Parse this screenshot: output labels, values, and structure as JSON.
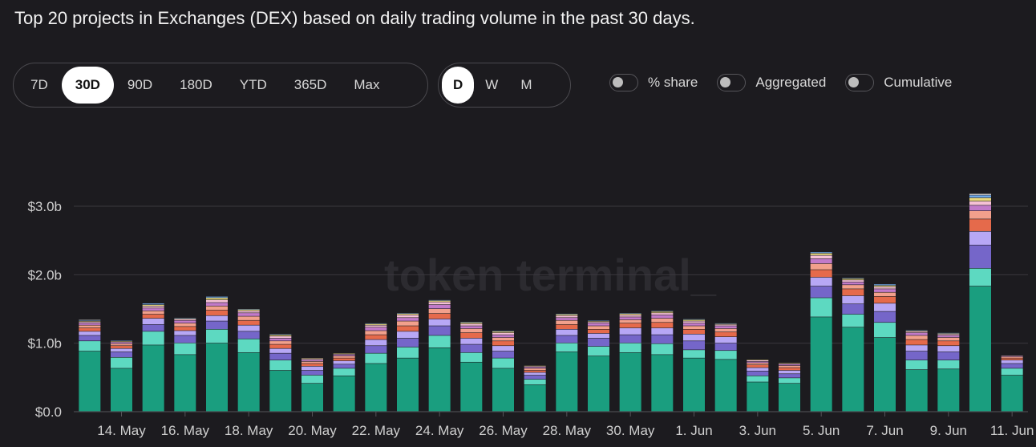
{
  "title": "Top 20 projects in Exchanges (DEX) based on daily trading volume in the past 30 days.",
  "range_options": [
    {
      "label": "7D",
      "active": false
    },
    {
      "label": "30D",
      "active": true
    },
    {
      "label": "90D",
      "active": false
    },
    {
      "label": "180D",
      "active": false
    },
    {
      "label": "YTD",
      "active": false
    },
    {
      "label": "365D",
      "active": false
    },
    {
      "label": "Max",
      "active": false
    }
  ],
  "granularity_options": [
    {
      "label": "D",
      "active": true
    },
    {
      "label": "W",
      "active": false
    },
    {
      "label": "M",
      "active": false
    }
  ],
  "toggles": [
    {
      "label": "% share",
      "on": false
    },
    {
      "label": "Aggregated",
      "on": false
    },
    {
      "label": "Cumulative",
      "on": false
    }
  ],
  "watermark": "token terminal_",
  "colors": {
    "background": "#1c1b1f",
    "grid": "#3a393e",
    "segment_palette": [
      "#1a9e7f",
      "#5dd9c1",
      "#7566c9",
      "#b7a7f5",
      "#e56a4b",
      "#f2a08c",
      "#c17ac9",
      "#f5c0d5",
      "#e8d77c",
      "#6ea8e8",
      "#f0f0f0",
      "#8fd18a"
    ]
  },
  "chart_data": {
    "type": "bar",
    "stacked": true,
    "y_ticks": [
      "$0.0",
      "$1.0b",
      "$2.0b",
      "$3.0b"
    ],
    "ylim": [
      0,
      3.0
    ],
    "x_tick_labels": [
      "14. May",
      "16. May",
      "18. May",
      "20. May",
      "22. May",
      "24. May",
      "26. May",
      "28. May",
      "30. May",
      "1. Jun",
      "3. Jun",
      "5. Jun",
      "7. Jun",
      "9. Jun",
      "11. Jun"
    ],
    "bars": [
      {
        "date": "13. May",
        "segments": [
          0.88,
          0.15,
          0.08,
          0.06,
          0.05,
          0.04,
          0.03,
          0.02,
          0.01,
          0.01,
          0.01
        ]
      },
      {
        "date": "14. May",
        "segments": [
          0.63,
          0.16,
          0.08,
          0.05,
          0.04,
          0.03,
          0.02,
          0.01,
          0.01,
          0.01
        ]
      },
      {
        "date": "15. May",
        "segments": [
          0.97,
          0.2,
          0.1,
          0.09,
          0.06,
          0.05,
          0.04,
          0.03,
          0.02,
          0.02
        ]
      },
      {
        "date": "16. May",
        "segments": [
          0.83,
          0.17,
          0.11,
          0.07,
          0.06,
          0.05,
          0.04,
          0.02,
          0.01,
          0.01
        ]
      },
      {
        "date": "17. May",
        "segments": [
          1.0,
          0.2,
          0.12,
          0.08,
          0.08,
          0.06,
          0.05,
          0.04,
          0.03,
          0.02
        ]
      },
      {
        "date": "18. May",
        "segments": [
          0.86,
          0.2,
          0.11,
          0.09,
          0.07,
          0.06,
          0.05,
          0.03,
          0.02,
          0.01
        ]
      },
      {
        "date": "19. May",
        "segments": [
          0.6,
          0.15,
          0.1,
          0.07,
          0.06,
          0.05,
          0.04,
          0.03,
          0.02,
          0.01
        ]
      },
      {
        "date": "20. May",
        "segments": [
          0.41,
          0.12,
          0.07,
          0.06,
          0.04,
          0.03,
          0.02,
          0.02,
          0.01
        ]
      },
      {
        "date": "21. May",
        "segments": [
          0.52,
          0.11,
          0.06,
          0.05,
          0.04,
          0.03,
          0.02,
          0.01,
          0.01
        ]
      },
      {
        "date": "22. May",
        "segments": [
          0.7,
          0.15,
          0.11,
          0.09,
          0.07,
          0.06,
          0.05,
          0.03,
          0.02,
          0.01
        ]
      },
      {
        "date": "23. May",
        "segments": [
          0.78,
          0.16,
          0.13,
          0.1,
          0.08,
          0.07,
          0.05,
          0.04,
          0.02,
          0.01
        ]
      },
      {
        "date": "24. May",
        "segments": [
          0.93,
          0.18,
          0.14,
          0.1,
          0.08,
          0.07,
          0.06,
          0.04,
          0.02,
          0.01
        ]
      },
      {
        "date": "25. May",
        "segments": [
          0.72,
          0.14,
          0.12,
          0.09,
          0.08,
          0.06,
          0.04,
          0.03,
          0.02,
          0.01
        ]
      },
      {
        "date": "26. May",
        "segments": [
          0.63,
          0.15,
          0.1,
          0.08,
          0.07,
          0.05,
          0.04,
          0.03,
          0.02,
          0.01
        ]
      },
      {
        "date": "27. May",
        "segments": [
          0.39,
          0.08,
          0.06,
          0.04,
          0.03,
          0.03,
          0.02,
          0.01,
          0.01
        ]
      },
      {
        "date": "28. May",
        "segments": [
          0.87,
          0.13,
          0.11,
          0.09,
          0.07,
          0.06,
          0.04,
          0.03,
          0.02,
          0.01
        ]
      },
      {
        "date": "29. May",
        "segments": [
          0.81,
          0.14,
          0.12,
          0.07,
          0.06,
          0.05,
          0.04,
          0.02,
          0.01,
          0.01
        ]
      },
      {
        "date": "30. May",
        "segments": [
          0.86,
          0.14,
          0.12,
          0.1,
          0.07,
          0.05,
          0.04,
          0.03,
          0.02,
          0.01
        ]
      },
      {
        "date": "31. May",
        "segments": [
          0.83,
          0.16,
          0.13,
          0.1,
          0.08,
          0.06,
          0.05,
          0.03,
          0.02,
          0.01
        ]
      },
      {
        "date": "1. Jun",
        "segments": [
          0.78,
          0.12,
          0.13,
          0.1,
          0.07,
          0.05,
          0.04,
          0.03,
          0.02,
          0.01
        ]
      },
      {
        "date": "2. Jun",
        "segments": [
          0.76,
          0.13,
          0.11,
          0.09,
          0.07,
          0.05,
          0.04,
          0.02,
          0.01,
          0.01
        ]
      },
      {
        "date": "3. Jun",
        "segments": [
          0.43,
          0.09,
          0.07,
          0.05,
          0.04,
          0.03,
          0.02,
          0.02,
          0.01
        ]
      },
      {
        "date": "4. Jun",
        "segments": [
          0.41,
          0.08,
          0.06,
          0.05,
          0.04,
          0.03,
          0.02,
          0.01,
          0.01
        ]
      },
      {
        "date": "5. Jun",
        "segments": [
          1.38,
          0.28,
          0.17,
          0.13,
          0.11,
          0.09,
          0.07,
          0.05,
          0.03,
          0.02
        ]
      },
      {
        "date": "6. Jun",
        "segments": [
          1.23,
          0.19,
          0.15,
          0.12,
          0.1,
          0.06,
          0.04,
          0.03,
          0.02,
          0.01
        ]
      },
      {
        "date": "7. Jun",
        "segments": [
          1.08,
          0.22,
          0.16,
          0.12,
          0.1,
          0.06,
          0.05,
          0.03,
          0.02,
          0.02
        ]
      },
      {
        "date": "8. Jun",
        "segments": [
          0.61,
          0.14,
          0.13,
          0.09,
          0.08,
          0.06,
          0.04,
          0.02,
          0.01,
          0.01
        ]
      },
      {
        "date": "9. Jun",
        "segments": [
          0.62,
          0.13,
          0.12,
          0.09,
          0.07,
          0.05,
          0.03,
          0.02,
          0.01,
          0.01
        ]
      },
      {
        "date": "10. Jun",
        "segments": [
          1.83,
          0.26,
          0.34,
          0.2,
          0.18,
          0.12,
          0.08,
          0.06,
          0.05,
          0.04,
          0.02
        ]
      },
      {
        "date": "11. Jun",
        "segments": [
          0.53,
          0.1,
          0.07,
          0.05,
          0.03,
          0.02,
          0.01,
          0.01
        ]
      }
    ]
  }
}
